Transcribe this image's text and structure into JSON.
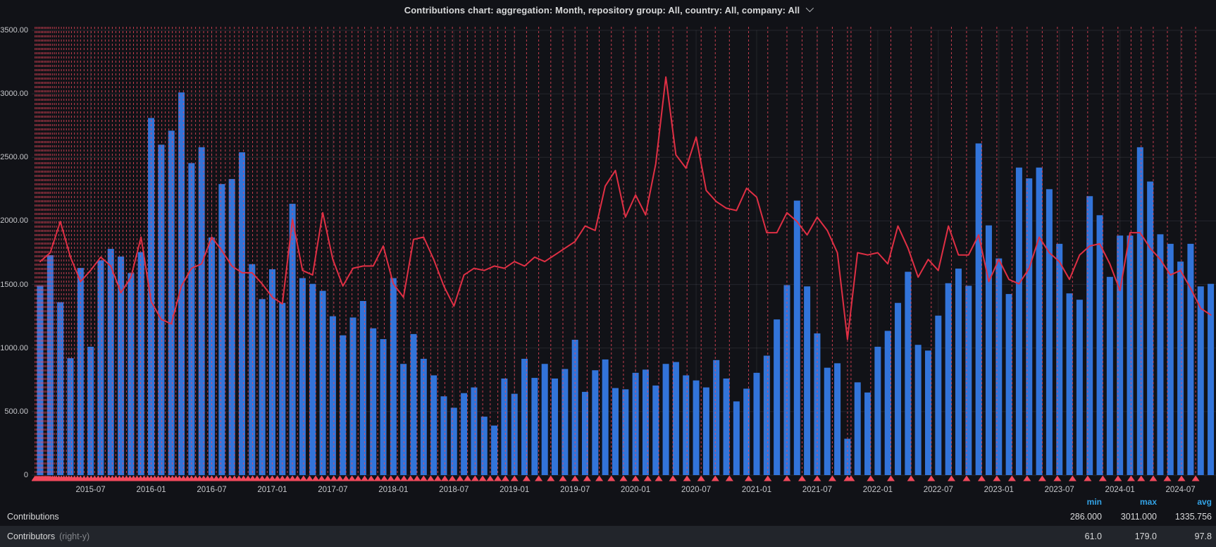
{
  "title": {
    "text": "Contributions chart: aggregation: Month, repository group: All, country: All, company: All",
    "chevron_icon": "chevron-down-icon"
  },
  "legend": {
    "columns": [
      "min",
      "max",
      "avg"
    ],
    "rows": [
      {
        "label": "Contributions",
        "suffix": "",
        "min": "286.000",
        "max": "3011.000",
        "avg": "1335.756"
      },
      {
        "label": "Contributors",
        "suffix": "(right-y)",
        "min": "61.0",
        "max": "179.0",
        "avg": "97.8"
      }
    ]
  },
  "chart_data": {
    "type": "bar",
    "title": "Contributions chart",
    "start_month": "2015-02",
    "end_month": "2024-10",
    "x_tick_labels": [
      "2015-07",
      "2016-01",
      "2016-07",
      "2017-01",
      "2017-07",
      "2018-01",
      "2018-07",
      "2019-01",
      "2019-07",
      "2020-01",
      "2020-07",
      "2021-01",
      "2021-07",
      "2022-01",
      "2022-07",
      "2023-01",
      "2023-07",
      "2024-01",
      "2024-07"
    ],
    "x_tick_month_index": [
      5,
      11,
      17,
      23,
      29,
      35,
      41,
      47,
      53,
      59,
      65,
      71,
      77,
      83,
      89,
      95,
      101,
      107,
      113
    ],
    "y_left": {
      "min": 0,
      "max": 3500,
      "tick_step": 500,
      "tick_labels": [
        "3500.00",
        "3000.00",
        "2500.00",
        "2000.00",
        "1500.00",
        "1000.00",
        "500.00",
        "0"
      ]
    },
    "y_right": {
      "min": 0,
      "max": 200
    },
    "grid": true,
    "legend_position": "bottom",
    "series": [
      {
        "name": "Contributions",
        "type": "bars",
        "axis": "left",
        "color": "#3274D9",
        "values": [
          1490,
          1730,
          1360,
          920,
          1630,
          1010,
          1690,
          1780,
          1720,
          1590,
          1755,
          2810,
          2600,
          2710,
          3011,
          2455,
          2580,
          1870,
          2290,
          2330,
          2540,
          1660,
          1385,
          1620,
          1355,
          2135,
          1550,
          1505,
          1450,
          1250,
          1100,
          1240,
          1370,
          1155,
          1070,
          1550,
          875,
          1110,
          915,
          785,
          620,
          530,
          645,
          690,
          460,
          390,
          760,
          640,
          915,
          765,
          875,
          760,
          835,
          1065,
          655,
          825,
          910,
          685,
          675,
          805,
          830,
          705,
          875,
          890,
          785,
          745,
          690,
          905,
          760,
          580,
          680,
          805,
          940,
          1225,
          1495,
          2160,
          1485,
          1115,
          845,
          880,
          286,
          730,
          650,
          1010,
          1135,
          1355,
          1600,
          1025,
          980,
          1255,
          1510,
          1625,
          1490,
          2610,
          1965,
          1705,
          1425,
          2420,
          2335,
          2420,
          2250,
          1820,
          1430,
          1380,
          2195,
          2045,
          1560,
          1885,
          1885,
          2580,
          2310,
          1895,
          1820,
          1680,
          1820,
          1485,
          1505
        ]
      },
      {
        "name": "Contributors",
        "type": "line",
        "axis": "right",
        "color": "#E02F44",
        "values": [
          96,
          100,
          114,
          98,
          87,
          92,
          98,
          94,
          82,
          89,
          107,
          78,
          70,
          68,
          85,
          93,
          95,
          107,
          101,
          94,
          91,
          91,
          86,
          80,
          77,
          115,
          92,
          90,
          118,
          97,
          85,
          93,
          94,
          94,
          103,
          86,
          80,
          106,
          107,
          97,
          85,
          76,
          90,
          93,
          92,
          94,
          93,
          96,
          94,
          98,
          96,
          99,
          102,
          105,
          112,
          110,
          130,
          137,
          116,
          126,
          117,
          140,
          179,
          144,
          138,
          152,
          128,
          123,
          120,
          119,
          129,
          125,
          109,
          109,
          118,
          114,
          108,
          116,
          110,
          100,
          61,
          100,
          99,
          100,
          95,
          112,
          102,
          89,
          97,
          92,
          112,
          99,
          99,
          108,
          87,
          97,
          88,
          86,
          93,
          107,
          100,
          96,
          88,
          99,
          103,
          104,
          95,
          83,
          109,
          109,
          102,
          97,
          90,
          92,
          84,
          75,
          72
        ]
      }
    ],
    "annotations": {
      "color": "#F2495C",
      "marker": "triangle-up",
      "positions_month": [
        -0.5,
        -0.35,
        -0.2,
        -0.05,
        0.1,
        0.25,
        0.4,
        0.55,
        0.7,
        0.85,
        1.0,
        1.2,
        1.4,
        1.6,
        1.85,
        2.1,
        2.35,
        2.6,
        2.85,
        3.1,
        3.4,
        3.7,
        4.0,
        4.35,
        4.7,
        5.05,
        5.4,
        5.75,
        6.1,
        6.45,
        6.8,
        7.15,
        7.5,
        7.85,
        8.2,
        8.55,
        8.9,
        9.25,
        9.6,
        9.95,
        10.3,
        10.65,
        11.0,
        11.35,
        11.7,
        12.05,
        12.4,
        12.75,
        13.1,
        13.45,
        13.8,
        14.2,
        14.6,
        15.0,
        15.4,
        15.8,
        16.2,
        16.6,
        17.0,
        17.45,
        17.9,
        18.35,
        18.8,
        19.25,
        19.7,
        20.15,
        20.6,
        21.05,
        21.5,
        22.0,
        22.5,
        23.0,
        23.5,
        24.0,
        24.5,
        25.0,
        25.5,
        26.1,
        26.7,
        27.3,
        27.9,
        28.5,
        29.1,
        29.7,
        30.3,
        30.9,
        31.5,
        32.15,
        32.8,
        33.45,
        34.1,
        34.75,
        35.4,
        36.05,
        36.7,
        37.35,
        38.0,
        38.7,
        39.4,
        40.1,
        40.85,
        41.6,
        42.35,
        43.1,
        43.85,
        44.6,
        45.35,
        46.1,
        47.0,
        48.2,
        49.4,
        50.6,
        51.8,
        53.0,
        54.2,
        55.4,
        56.6,
        57.8,
        59.0,
        60.2,
        61.3,
        62.7,
        64.1,
        65.5,
        66.9,
        68.3,
        70.2,
        72.1,
        74.0,
        75.5,
        77.0,
        78.5,
        80.0,
        80.35,
        82.3,
        84.3,
        86.3,
        88.3,
        90.3,
        91.8,
        93.3,
        94.8,
        96.3,
        97.8,
        99.3,
        100.8,
        102.3,
        103.8,
        105.3,
        106.8,
        108.1,
        109.1,
        110.3,
        111.7,
        113.1,
        114.5
      ]
    }
  }
}
